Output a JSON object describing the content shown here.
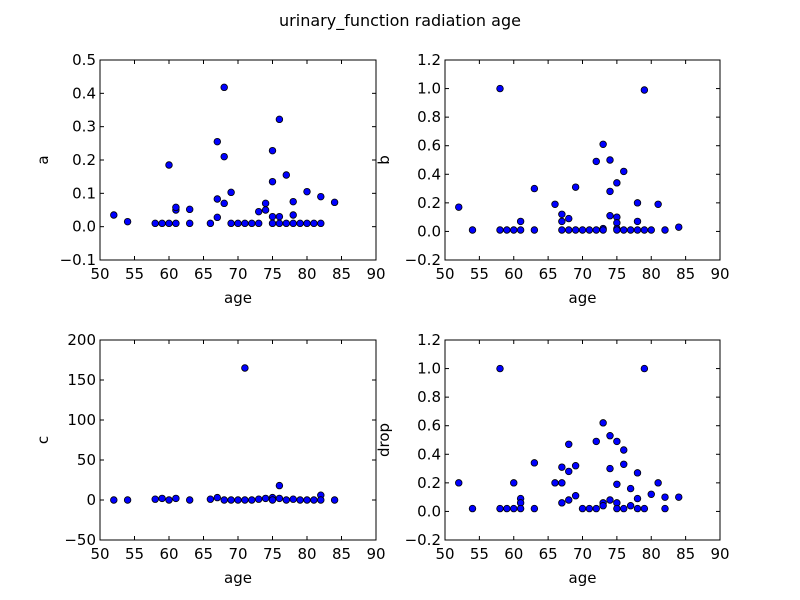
{
  "figure": {
    "title": "urinary_function radiation age"
  },
  "chart_data": [
    {
      "type": "scatter",
      "xlabel": "age",
      "ylabel": "a",
      "xlim": [
        50,
        90
      ],
      "ylim": [
        -0.1,
        0.5
      ],
      "xticks": [
        "50",
        "55",
        "60",
        "65",
        "70",
        "75",
        "80",
        "85",
        "90"
      ],
      "yticks": [
        "−0.1",
        "0.0",
        "0.1",
        "0.2",
        "0.3",
        "0.4",
        "0.5"
      ],
      "x": [
        52,
        54,
        58,
        59,
        60,
        60,
        61,
        61,
        61,
        63,
        63,
        66,
        67,
        67,
        67,
        68,
        68,
        68,
        69,
        69,
        70,
        71,
        72,
        73,
        73,
        74,
        74,
        75,
        75,
        75,
        75,
        76,
        76,
        76,
        77,
        77,
        78,
        78,
        78,
        79,
        80,
        80,
        81,
        82,
        82,
        84
      ],
      "y": [
        0.035,
        0.015,
        0.01,
        0.01,
        0.01,
        0.185,
        0.05,
        0.058,
        0.01,
        0.052,
        0.01,
        0.01,
        0.255,
        0.083,
        0.028,
        0.418,
        0.21,
        0.07,
        0.103,
        0.01,
        0.01,
        0.01,
        0.01,
        0.01,
        0.045,
        0.05,
        0.07,
        0.228,
        0.135,
        0.03,
        0.01,
        0.322,
        0.03,
        0.01,
        0.155,
        0.01,
        0.075,
        0.035,
        0.01,
        0.01,
        0.105,
        0.01,
        0.01,
        0.09,
        0.01,
        0.073
      ]
    },
    {
      "type": "scatter",
      "xlabel": "age",
      "ylabel": "b",
      "xlim": [
        50,
        90
      ],
      "ylim": [
        -0.2,
        1.2
      ],
      "xticks": [
        "50",
        "55",
        "60",
        "65",
        "70",
        "75",
        "80",
        "85",
        "90"
      ],
      "yticks": [
        "−0.2",
        "0.0",
        "0.2",
        "0.4",
        "0.6",
        "0.8",
        "1.0",
        "1.2"
      ],
      "x": [
        52,
        54,
        58,
        58,
        59,
        60,
        61,
        61,
        63,
        63,
        66,
        67,
        67,
        67,
        68,
        68,
        69,
        69,
        70,
        71,
        72,
        72,
        73,
        73,
        73,
        74,
        74,
        74,
        75,
        75,
        75,
        75,
        75,
        76,
        76,
        77,
        78,
        78,
        78,
        79,
        79,
        80,
        81,
        82,
        84
      ],
      "y": [
        0.17,
        0.01,
        1.0,
        0.01,
        0.01,
        0.01,
        0.07,
        0.01,
        0.3,
        0.01,
        0.19,
        0.12,
        0.07,
        0.01,
        0.09,
        0.01,
        0.31,
        0.01,
        0.01,
        0.01,
        0.49,
        0.01,
        0.61,
        0.02,
        0.01,
        0.5,
        0.28,
        0.11,
        0.34,
        0.1,
        0.06,
        0.02,
        0.01,
        0.42,
        0.01,
        0.01,
        0.2,
        0.07,
        0.01,
        0.99,
        0.01,
        0.01,
        0.19,
        0.01,
        0.03
      ]
    },
    {
      "type": "scatter",
      "xlabel": "age",
      "ylabel": "c",
      "xlim": [
        50,
        90
      ],
      "ylim": [
        -50,
        200
      ],
      "xticks": [
        "50",
        "55",
        "60",
        "65",
        "70",
        "75",
        "80",
        "85",
        "90"
      ],
      "yticks": [
        "−50",
        "0",
        "50",
        "100",
        "150",
        "200"
      ],
      "x": [
        52,
        54,
        58,
        59,
        60,
        61,
        63,
        66,
        67,
        68,
        69,
        70,
        71,
        71,
        72,
        73,
        74,
        75,
        75,
        76,
        76,
        77,
        78,
        79,
        80,
        81,
        82,
        82,
        84
      ],
      "y": [
        0,
        0,
        1,
        2,
        0,
        2,
        0,
        1,
        3,
        0,
        0,
        0,
        165,
        0,
        0,
        1,
        2,
        3,
        0,
        18,
        2,
        0,
        1,
        0,
        0,
        0,
        6,
        0,
        0
      ]
    },
    {
      "type": "scatter",
      "xlabel": "age",
      "ylabel": "drop",
      "xlim": [
        50,
        90
      ],
      "ylim": [
        -0.2,
        1.2
      ],
      "xticks": [
        "50",
        "55",
        "60",
        "65",
        "70",
        "75",
        "80",
        "85",
        "90"
      ],
      "yticks": [
        "−0.2",
        "0.0",
        "0.2",
        "0.4",
        "0.6",
        "0.8",
        "1.0",
        "1.2"
      ],
      "x": [
        52,
        54,
        58,
        58,
        59,
        60,
        60,
        61,
        61,
        61,
        63,
        63,
        66,
        67,
        67,
        67,
        68,
        68,
        68,
        69,
        69,
        70,
        71,
        72,
        72,
        73,
        73,
        73,
        74,
        74,
        74,
        75,
        75,
        75,
        75,
        76,
        76,
        76,
        77,
        77,
        78,
        78,
        78,
        79,
        79,
        80,
        81,
        82,
        82,
        84
      ],
      "y": [
        0.2,
        0.02,
        1.0,
        0.02,
        0.02,
        0.2,
        0.02,
        0.09,
        0.06,
        0.02,
        0.34,
        0.02,
        0.2,
        0.31,
        0.2,
        0.06,
        0.47,
        0.28,
        0.08,
        0.32,
        0.11,
        0.02,
        0.02,
        0.49,
        0.02,
        0.62,
        0.06,
        0.04,
        0.53,
        0.3,
        0.08,
        0.49,
        0.19,
        0.06,
        0.02,
        0.43,
        0.33,
        0.02,
        0.16,
        0.04,
        0.27,
        0.09,
        0.02,
        1.0,
        0.02,
        0.12,
        0.2,
        0.1,
        0.02,
        0.1
      ]
    }
  ]
}
